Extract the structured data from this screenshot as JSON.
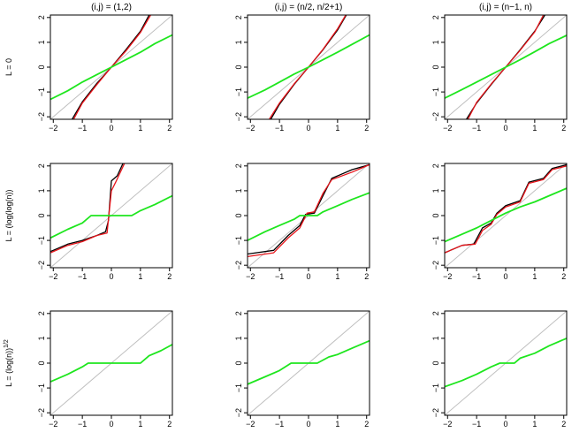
{
  "figure": {
    "column_titles": [
      "(i,j) = (1,2)",
      "(i,j) = (n/2, n/2+1)",
      "(i,j) = (n−1, n)"
    ],
    "row_labels": [
      {
        "main": "L = 0",
        "sup": ""
      },
      {
        "main": "L = (log(log(n))",
        "sup": ""
      },
      {
        "main": "L = (log(n))",
        "sup": "1/2"
      }
    ]
  },
  "colors": {
    "diagonal": "#bfbfbf",
    "black_curve": "#000000",
    "red_curve": "#e8141a",
    "green_curve": "#1ee61e",
    "axis": "#000000"
  },
  "chart_data": [
    {
      "type": "line",
      "panel": "row1-col1",
      "xlim": [
        -2.1,
        2.1
      ],
      "ylim": [
        -2.1,
        2.1
      ],
      "xticks": [
        -2,
        -1,
        0,
        1,
        2
      ],
      "yticks": [
        -2,
        -1,
        0,
        1,
        2
      ],
      "series": [
        {
          "color": "black",
          "points": [
            [
              -2.1,
              -2.1
            ],
            [
              2.1,
              2.1
            ]
          ]
        },
        {
          "color": "black",
          "points": [
            [
              -1.35,
              -2.1
            ],
            [
              -1.0,
              -1.4
            ],
            [
              -0.5,
              -0.65
            ],
            [
              0,
              0
            ],
            [
              0.5,
              0.7
            ],
            [
              1.0,
              1.45
            ],
            [
              1.3,
              2.1
            ]
          ]
        },
        {
          "color": "red",
          "points": [
            [
              -1.3,
              -2.1
            ],
            [
              -1.0,
              -1.45
            ],
            [
              -0.5,
              -0.7
            ],
            [
              0,
              0
            ],
            [
              0.5,
              0.65
            ],
            [
              1.0,
              1.4
            ],
            [
              1.35,
              2.1
            ]
          ]
        },
        {
          "color": "green",
          "points": [
            [
              -2.1,
              -1.3
            ],
            [
              -1.5,
              -0.95
            ],
            [
              -1.0,
              -0.6
            ],
            [
              -0.5,
              -0.3
            ],
            [
              0,
              0
            ],
            [
              0.5,
              0.3
            ],
            [
              1.0,
              0.6
            ],
            [
              1.5,
              0.95
            ],
            [
              2.1,
              1.3
            ]
          ]
        }
      ]
    },
    {
      "type": "line",
      "panel": "row1-col2",
      "xlim": [
        -2.1,
        2.1
      ],
      "ylim": [
        -2.1,
        2.1
      ],
      "xticks": [
        -2,
        -1,
        0,
        1,
        2
      ],
      "yticks": [
        -2,
        -1,
        0,
        1,
        2
      ],
      "series": [
        {
          "color": "black",
          "points": [
            [
              -2.1,
              -2.1
            ],
            [
              2.1,
              2.1
            ]
          ]
        },
        {
          "color": "black",
          "points": [
            [
              -1.3,
              -2.1
            ],
            [
              -1.0,
              -1.5
            ],
            [
              -0.5,
              -0.7
            ],
            [
              0,
              0
            ],
            [
              0.5,
              0.7
            ],
            [
              1.0,
              1.5
            ],
            [
              1.3,
              2.1
            ]
          ]
        },
        {
          "color": "red",
          "points": [
            [
              -1.35,
              -2.1
            ],
            [
              -1.0,
              -1.45
            ],
            [
              -0.5,
              -0.68
            ],
            [
              0,
              0
            ],
            [
              0.5,
              0.72
            ],
            [
              1.0,
              1.55
            ],
            [
              1.28,
              2.1
            ]
          ]
        },
        {
          "color": "green",
          "points": [
            [
              -2.1,
              -1.25
            ],
            [
              -1.5,
              -0.92
            ],
            [
              -1.0,
              -0.6
            ],
            [
              -0.5,
              -0.28
            ],
            [
              0,
              0
            ],
            [
              0.5,
              0.3
            ],
            [
              1.0,
              0.6
            ],
            [
              1.5,
              0.92
            ],
            [
              2.1,
              1.3
            ]
          ]
        }
      ]
    },
    {
      "type": "line",
      "panel": "row1-col3",
      "xlim": [
        -2.1,
        2.1
      ],
      "ylim": [
        -2.1,
        2.1
      ],
      "xticks": [
        -2,
        -1,
        0,
        1,
        2
      ],
      "yticks": [
        -2,
        -1,
        0,
        1,
        2
      ],
      "series": [
        {
          "color": "black",
          "points": [
            [
              -2.1,
              -2.1
            ],
            [
              2.1,
              2.1
            ]
          ]
        },
        {
          "color": "black",
          "points": [
            [
              -1.35,
              -2.1
            ],
            [
              -1.0,
              -1.45
            ],
            [
              -0.5,
              -0.7
            ],
            [
              0,
              0
            ],
            [
              0.5,
              0.7
            ],
            [
              1.0,
              1.45
            ],
            [
              1.35,
              2.1
            ]
          ]
        },
        {
          "color": "red",
          "points": [
            [
              -1.3,
              -2.1
            ],
            [
              -1.0,
              -1.42
            ],
            [
              -0.5,
              -0.68
            ],
            [
              0,
              0
            ],
            [
              0.5,
              0.68
            ],
            [
              1.0,
              1.42
            ],
            [
              1.3,
              2.1
            ]
          ]
        },
        {
          "color": "green",
          "points": [
            [
              -2.1,
              -1.25
            ],
            [
              -1.5,
              -0.9
            ],
            [
              -1.0,
              -0.6
            ],
            [
              -0.5,
              -0.3
            ],
            [
              0,
              0
            ],
            [
              0.5,
              0.3
            ],
            [
              1.0,
              0.62
            ],
            [
              1.5,
              0.95
            ],
            [
              2.1,
              1.28
            ]
          ]
        }
      ]
    },
    {
      "type": "line",
      "panel": "row2-col1",
      "xlim": [
        -2.1,
        2.1
      ],
      "ylim": [
        -2.1,
        2.1
      ],
      "xticks": [
        -2,
        -1,
        0,
        1,
        2
      ],
      "yticks": [
        -2,
        -1,
        0,
        1,
        2
      ],
      "series": [
        {
          "color": "black",
          "points": [
            [
              -2.1,
              -2.1
            ],
            [
              2.1,
              2.1
            ]
          ]
        },
        {
          "color": "black",
          "points": [
            [
              -2.1,
              -1.45
            ],
            [
              -1.5,
              -1.15
            ],
            [
              -1.0,
              -1.0
            ],
            [
              -0.5,
              -0.8
            ],
            [
              -0.2,
              -0.65
            ],
            [
              -0.1,
              -0.2
            ],
            [
              0.0,
              1.4
            ],
            [
              0.2,
              1.6
            ],
            [
              0.4,
              2.1
            ]
          ]
        },
        {
          "color": "red",
          "points": [
            [
              -2.1,
              -1.5
            ],
            [
              -1.5,
              -1.2
            ],
            [
              -1.0,
              -1.05
            ],
            [
              -0.5,
              -0.8
            ],
            [
              -0.15,
              -0.7
            ],
            [
              0.0,
              1.0
            ],
            [
              0.15,
              1.35
            ],
            [
              0.45,
              2.1
            ]
          ]
        },
        {
          "color": "green",
          "points": [
            [
              -2.1,
              -0.9
            ],
            [
              -1.5,
              -0.55
            ],
            [
              -1.0,
              -0.3
            ],
            [
              -0.7,
              0.0
            ],
            [
              0.7,
              0.0
            ],
            [
              1.0,
              0.2
            ],
            [
              1.5,
              0.45
            ],
            [
              2.1,
              0.8
            ]
          ]
        }
      ]
    },
    {
      "type": "line",
      "panel": "row2-col2",
      "xlim": [
        -2.1,
        2.1
      ],
      "ylim": [
        -2.1,
        2.1
      ],
      "xticks": [
        -2,
        -1,
        0,
        1,
        2
      ],
      "yticks": [
        -2,
        -1,
        0,
        1,
        2
      ],
      "series": [
        {
          "color": "black",
          "points": [
            [
              -2.1,
              -2.1
            ],
            [
              2.1,
              2.1
            ]
          ]
        },
        {
          "color": "black",
          "points": [
            [
              -2.1,
              -1.55
            ],
            [
              -1.2,
              -1.4
            ],
            [
              -0.7,
              -0.8
            ],
            [
              -0.3,
              -0.4
            ],
            [
              -0.1,
              0.05
            ],
            [
              0.2,
              0.1
            ],
            [
              0.5,
              0.8
            ],
            [
              0.8,
              1.5
            ],
            [
              1.5,
              1.85
            ],
            [
              2.1,
              2.05
            ]
          ]
        },
        {
          "color": "red",
          "points": [
            [
              -2.1,
              -1.65
            ],
            [
              -1.2,
              -1.5
            ],
            [
              -0.7,
              -0.9
            ],
            [
              -0.3,
              -0.5
            ],
            [
              -0.05,
              0.1
            ],
            [
              0.2,
              0.15
            ],
            [
              0.5,
              0.9
            ],
            [
              0.8,
              1.45
            ],
            [
              1.5,
              1.75
            ],
            [
              2.1,
              2.05
            ]
          ]
        },
        {
          "color": "green",
          "points": [
            [
              -2.1,
              -1.0
            ],
            [
              -1.5,
              -0.65
            ],
            [
              -1.0,
              -0.4
            ],
            [
              -0.5,
              -0.15
            ],
            [
              -0.3,
              0.0
            ],
            [
              0.3,
              0.0
            ],
            [
              0.5,
              0.15
            ],
            [
              1.0,
              0.4
            ],
            [
              1.5,
              0.65
            ],
            [
              2.1,
              0.92
            ]
          ]
        }
      ]
    },
    {
      "type": "line",
      "panel": "row2-col3",
      "xlim": [
        -2.1,
        2.1
      ],
      "ylim": [
        -2.1,
        2.1
      ],
      "xticks": [
        -2,
        -1,
        0,
        1,
        2
      ],
      "yticks": [
        -2,
        -1,
        0,
        1,
        2
      ],
      "series": [
        {
          "color": "black",
          "points": [
            [
              -2.1,
              -2.1
            ],
            [
              2.1,
              2.1
            ]
          ]
        },
        {
          "color": "black",
          "points": [
            [
              -2.1,
              -1.5
            ],
            [
              -1.5,
              -1.2
            ],
            [
              -1.1,
              -1.15
            ],
            [
              -0.8,
              -0.5
            ],
            [
              -0.5,
              -0.3
            ],
            [
              -0.3,
              0.1
            ],
            [
              0,
              0.4
            ],
            [
              0.5,
              0.6
            ],
            [
              0.8,
              1.35
            ],
            [
              1.3,
              1.5
            ],
            [
              1.6,
              1.9
            ],
            [
              2.1,
              2.05
            ]
          ]
        },
        {
          "color": "red",
          "points": [
            [
              -2.1,
              -1.5
            ],
            [
              -1.5,
              -1.2
            ],
            [
              -1.05,
              -1.15
            ],
            [
              -0.8,
              -0.6
            ],
            [
              -0.5,
              -0.35
            ],
            [
              -0.3,
              0.05
            ],
            [
              0,
              0.35
            ],
            [
              0.5,
              0.55
            ],
            [
              0.8,
              1.3
            ],
            [
              1.3,
              1.45
            ],
            [
              1.6,
              1.85
            ],
            [
              2.1,
              2.0
            ]
          ]
        },
        {
          "color": "green",
          "points": [
            [
              -2.1,
              -1.05
            ],
            [
              -1.5,
              -0.75
            ],
            [
              -1.0,
              -0.5
            ],
            [
              -0.5,
              -0.2
            ],
            [
              0,
              0.1
            ],
            [
              0.5,
              0.35
            ],
            [
              1.0,
              0.55
            ],
            [
              1.5,
              0.8
            ],
            [
              2.1,
              1.1
            ]
          ]
        }
      ]
    },
    {
      "type": "line",
      "panel": "row3-col1",
      "xlim": [
        -2.1,
        2.1
      ],
      "ylim": [
        -2.1,
        2.1
      ],
      "xticks": [
        -2,
        -1,
        0,
        1,
        2
      ],
      "yticks": [
        -2,
        -1,
        0,
        1,
        2
      ],
      "series": [
        {
          "color": "black",
          "points": [
            [
              -2.1,
              -2.1
            ],
            [
              2.1,
              2.1
            ]
          ]
        },
        {
          "color": "green",
          "points": [
            [
              -2.1,
              -0.75
            ],
            [
              -1.5,
              -0.45
            ],
            [
              -1.0,
              -0.15
            ],
            [
              -0.8,
              0.0
            ],
            [
              1.0,
              0.0
            ],
            [
              1.3,
              0.3
            ],
            [
              1.7,
              0.5
            ],
            [
              2.1,
              0.75
            ]
          ]
        }
      ]
    },
    {
      "type": "line",
      "panel": "row3-col2",
      "xlim": [
        -2.1,
        2.1
      ],
      "ylim": [
        -2.1,
        2.1
      ],
      "xticks": [
        -2,
        -1,
        0,
        1,
        2
      ],
      "yticks": [
        -2,
        -1,
        0,
        1,
        2
      ],
      "series": [
        {
          "color": "black",
          "points": [
            [
              -2.1,
              -2.1
            ],
            [
              2.1,
              2.1
            ]
          ]
        },
        {
          "color": "green",
          "points": [
            [
              -2.1,
              -0.85
            ],
            [
              -1.5,
              -0.55
            ],
            [
              -1.0,
              -0.3
            ],
            [
              -0.6,
              0.0
            ],
            [
              0.3,
              0.0
            ],
            [
              0.7,
              0.25
            ],
            [
              1.0,
              0.35
            ],
            [
              1.5,
              0.6
            ],
            [
              2.1,
              0.9
            ]
          ]
        }
      ]
    },
    {
      "type": "line",
      "panel": "row3-col3",
      "xlim": [
        -2.1,
        2.1
      ],
      "ylim": [
        -2.1,
        2.1
      ],
      "xticks": [
        -2,
        -1,
        0,
        1,
        2
      ],
      "yticks": [
        -2,
        -1,
        0,
        1,
        2
      ],
      "series": [
        {
          "color": "black",
          "points": [
            [
              -2.1,
              -2.1
            ],
            [
              2.1,
              2.1
            ]
          ]
        },
        {
          "color": "green",
          "points": [
            [
              -2.1,
              -0.95
            ],
            [
              -1.5,
              -0.7
            ],
            [
              -1.0,
              -0.45
            ],
            [
              -0.5,
              -0.15
            ],
            [
              -0.2,
              0.0
            ],
            [
              0.3,
              0.0
            ],
            [
              0.5,
              0.2
            ],
            [
              1.0,
              0.4
            ],
            [
              1.5,
              0.7
            ],
            [
              2.1,
              1.0
            ]
          ]
        }
      ]
    }
  ]
}
